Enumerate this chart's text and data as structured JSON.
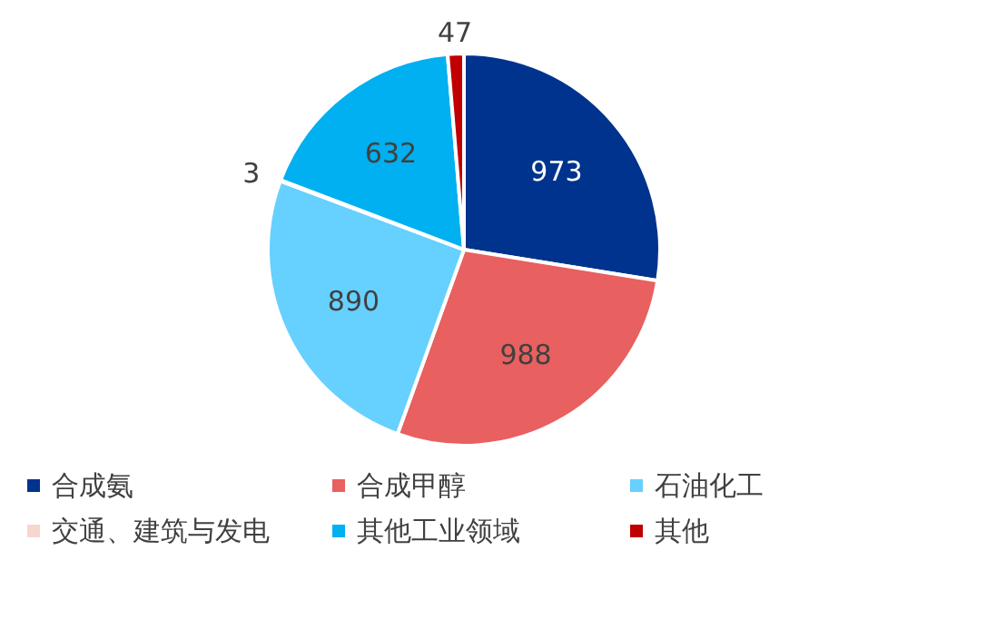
{
  "chart_data": {
    "type": "pie",
    "categories": [
      "合成氨",
      "合成甲醇",
      "石油化工",
      "交通、建筑与发电",
      "其他工业领域",
      "其他"
    ],
    "values": [
      973,
      988,
      890,
      3,
      632,
      47
    ],
    "colors": [
      "#00338d",
      "#e8605f",
      "#66d0ff",
      "#f8d6d0",
      "#00b0f0",
      "#c00000"
    ],
    "data_labels": true,
    "legend": "bottom"
  }
}
